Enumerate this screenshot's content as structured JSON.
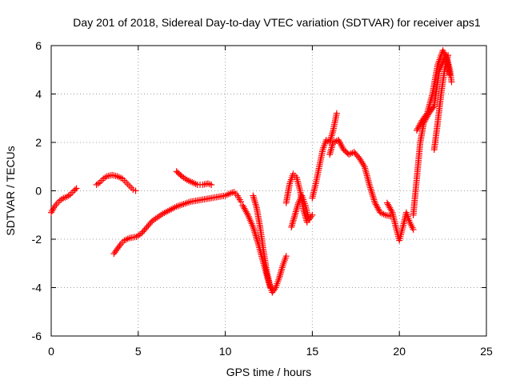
{
  "chart_data": {
    "type": "scatter",
    "title": "Day 201 of 2018, Sidereal Day-to-day VTEC variation (SDTVAR) for receiver aps1",
    "xlabel": "GPS time / hours",
    "ylabel": "SDTVAR / TECUs",
    "xlim": [
      0,
      25
    ],
    "ylim": [
      -6,
      6
    ],
    "xticks": [
      0,
      5,
      10,
      15,
      20,
      25
    ],
    "yticks": [
      -6,
      -4,
      -2,
      0,
      2,
      4,
      6
    ],
    "xtick_labels": [
      "0",
      "5",
      "10",
      "15",
      "20",
      "25"
    ],
    "ytick_labels": [
      "-6",
      "-4",
      "-2",
      "0",
      "2",
      "4",
      "6"
    ],
    "grid": true,
    "grid_style": "dotted",
    "marker": "plus",
    "marker_color": "#ff0000",
    "series": [
      {
        "segments": [
          [
            [
              0.0,
              -0.9
            ],
            [
              0.15,
              -0.7
            ],
            [
              0.3,
              -0.55
            ],
            [
              0.5,
              -0.4
            ],
            [
              0.7,
              -0.3
            ],
            [
              0.9,
              -0.25
            ],
            [
              1.1,
              -0.15
            ],
            [
              1.3,
              0.0
            ],
            [
              1.45,
              0.1
            ]
          ],
          [
            [
              2.6,
              0.25
            ],
            [
              2.8,
              0.35
            ],
            [
              3.0,
              0.5
            ],
            [
              3.2,
              0.6
            ],
            [
              3.5,
              0.65
            ],
            [
              3.8,
              0.6
            ],
            [
              4.1,
              0.5
            ],
            [
              4.3,
              0.35
            ],
            [
              4.5,
              0.2
            ],
            [
              4.7,
              0.05
            ],
            [
              4.85,
              0.0
            ]
          ],
          [
            [
              3.6,
              -2.6
            ],
            [
              3.8,
              -2.4
            ],
            [
              4.0,
              -2.2
            ],
            [
              4.2,
              -2.05
            ],
            [
              4.5,
              -1.95
            ],
            [
              4.9,
              -1.9
            ],
            [
              5.2,
              -1.75
            ],
            [
              5.5,
              -1.5
            ],
            [
              5.8,
              -1.25
            ],
            [
              6.1,
              -1.1
            ],
            [
              6.4,
              -0.95
            ],
            [
              6.8,
              -0.8
            ],
            [
              7.2,
              -0.65
            ],
            [
              7.6,
              -0.55
            ],
            [
              8.0,
              -0.45
            ],
            [
              8.4,
              -0.4
            ],
            [
              8.8,
              -0.35
            ],
            [
              9.2,
              -0.3
            ],
            [
              9.6,
              -0.25
            ],
            [
              10.0,
              -0.2
            ],
            [
              10.3,
              -0.1
            ],
            [
              10.5,
              -0.05
            ],
            [
              10.7,
              -0.2
            ],
            [
              10.9,
              -0.45
            ]
          ],
          [
            [
              7.2,
              0.8
            ],
            [
              7.5,
              0.6
            ],
            [
              7.8,
              0.45
            ],
            [
              8.1,
              0.35
            ],
            [
              8.4,
              0.25
            ],
            [
              8.7,
              0.25
            ],
            [
              9.0,
              0.3
            ],
            [
              9.2,
              0.25
            ]
          ],
          [
            [
              11.0,
              -0.6
            ],
            [
              11.3,
              -1.0
            ],
            [
              11.6,
              -1.5
            ],
            [
              11.9,
              -2.2
            ],
            [
              12.2,
              -3.0
            ],
            [
              12.5,
              -3.8
            ],
            [
              12.7,
              -4.2
            ],
            [
              12.9,
              -4.0
            ],
            [
              13.1,
              -3.6
            ],
            [
              13.3,
              -3.1
            ],
            [
              13.5,
              -2.7
            ]
          ],
          [
            [
              11.6,
              -0.2
            ],
            [
              11.8,
              -0.7
            ],
            [
              12.0,
              -1.5
            ],
            [
              12.2,
              -2.5
            ],
            [
              12.4,
              -3.4
            ],
            [
              12.6,
              -4.0
            ]
          ],
          [
            [
              13.5,
              -0.5
            ],
            [
              13.7,
              0.3
            ],
            [
              13.9,
              0.7
            ],
            [
              14.1,
              0.55
            ],
            [
              14.3,
              0.0
            ],
            [
              14.5,
              -0.8
            ],
            [
              14.7,
              -1.3
            ]
          ],
          [
            [
              13.8,
              -1.5
            ],
            [
              14.0,
              -1.0
            ],
            [
              14.2,
              -0.5
            ],
            [
              14.4,
              -0.2
            ],
            [
              14.6,
              -0.6
            ],
            [
              14.8,
              -1.2
            ],
            [
              15.0,
              -1.0
            ]
          ],
          [
            [
              15.0,
              -0.3
            ],
            [
              15.2,
              0.3
            ],
            [
              15.4,
              1.0
            ],
            [
              15.6,
              1.7
            ],
            [
              15.8,
              2.1
            ],
            [
              16.0,
              2.0
            ],
            [
              16.2,
              2.5
            ],
            [
              16.4,
              3.2
            ]
          ],
          [
            [
              16.0,
              1.5
            ],
            [
              16.2,
              2.0
            ],
            [
              16.5,
              2.1
            ],
            [
              16.8,
              1.7
            ],
            [
              17.1,
              1.5
            ],
            [
              17.4,
              1.6
            ],
            [
              17.7,
              1.35
            ],
            [
              18.0,
              1.0
            ],
            [
              18.3,
              0.2
            ],
            [
              18.6,
              -0.5
            ],
            [
              18.9,
              -0.9
            ],
            [
              19.2,
              -1.0
            ],
            [
              19.5,
              -1.05
            ]
          ],
          [
            [
              19.3,
              -0.5
            ],
            [
              19.6,
              -0.9
            ],
            [
              19.8,
              -1.5
            ],
            [
              20.0,
              -2.05
            ],
            [
              20.2,
              -1.5
            ],
            [
              20.4,
              -0.9
            ],
            [
              20.6,
              -1.3
            ],
            [
              20.8,
              -1.6
            ]
          ],
          [
            [
              20.8,
              -1.0
            ],
            [
              21.0,
              0.5
            ],
            [
              21.2,
              2.0
            ],
            [
              21.4,
              2.8
            ],
            [
              21.7,
              3.2
            ],
            [
              22.0,
              3.5
            ],
            [
              22.3,
              5.0
            ],
            [
              22.5,
              5.3
            ],
            [
              22.7,
              5.6
            ],
            [
              22.9,
              5.0
            ],
            [
              23.0,
              4.5
            ]
          ],
          [
            [
              21.0,
              2.5
            ],
            [
              21.3,
              2.9
            ],
            [
              21.6,
              3.2
            ],
            [
              21.9,
              4.0
            ],
            [
              22.2,
              5.2
            ],
            [
              22.5,
              5.8
            ],
            [
              22.7,
              5.5
            ],
            [
              22.9,
              4.8
            ]
          ],
          [
            [
              22.0,
              1.7
            ],
            [
              22.2,
              2.8
            ],
            [
              22.4,
              4.0
            ],
            [
              22.6,
              5.0
            ],
            [
              22.8,
              5.6
            ]
          ]
        ]
      }
    ]
  }
}
